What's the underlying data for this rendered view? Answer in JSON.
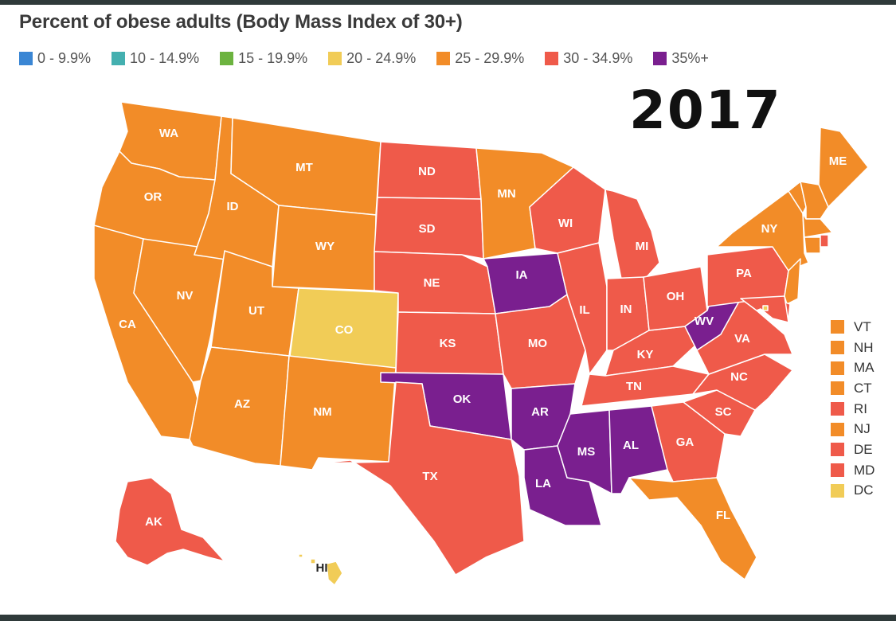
{
  "title": "Percent of obese adults (Body Mass Index of 30+)",
  "year": "2017",
  "legend": [
    {
      "label": "0 - 9.9%",
      "color": "#3a86d4"
    },
    {
      "label": "10 - 14.9%",
      "color": "#44b0b0"
    },
    {
      "label": "15 - 19.9%",
      "color": "#6cb33f"
    },
    {
      "label": "20 - 24.9%",
      "color": "#f1cc57"
    },
    {
      "label": "25 - 29.9%",
      "color": "#f28c28"
    },
    {
      "label": "30 - 34.9%",
      "color": "#ef5a4a"
    },
    {
      "label": "35%+",
      "color": "#7a1f8f"
    }
  ],
  "states": [
    {
      "abbr": "WA",
      "range": "25 - 29.9%"
    },
    {
      "abbr": "OR",
      "range": "25 - 29.9%"
    },
    {
      "abbr": "CA",
      "range": "25 - 29.9%"
    },
    {
      "abbr": "NV",
      "range": "25 - 29.9%"
    },
    {
      "abbr": "ID",
      "range": "25 - 29.9%"
    },
    {
      "abbr": "MT",
      "range": "25 - 29.9%"
    },
    {
      "abbr": "WY",
      "range": "25 - 29.9%"
    },
    {
      "abbr": "UT",
      "range": "25 - 29.9%"
    },
    {
      "abbr": "AZ",
      "range": "25 - 29.9%"
    },
    {
      "abbr": "CO",
      "range": "20 - 24.9%"
    },
    {
      "abbr": "NM",
      "range": "25 - 29.9%"
    },
    {
      "abbr": "ND",
      "range": "30 - 34.9%"
    },
    {
      "abbr": "SD",
      "range": "30 - 34.9%"
    },
    {
      "abbr": "NE",
      "range": "30 - 34.9%"
    },
    {
      "abbr": "KS",
      "range": "30 - 34.9%"
    },
    {
      "abbr": "OK",
      "range": "35%+"
    },
    {
      "abbr": "TX",
      "range": "30 - 34.9%"
    },
    {
      "abbr": "MN",
      "range": "25 - 29.9%"
    },
    {
      "abbr": "IA",
      "range": "35%+"
    },
    {
      "abbr": "MO",
      "range": "30 - 34.9%"
    },
    {
      "abbr": "AR",
      "range": "35%+"
    },
    {
      "abbr": "LA",
      "range": "35%+"
    },
    {
      "abbr": "WI",
      "range": "30 - 34.9%"
    },
    {
      "abbr": "IL",
      "range": "30 - 34.9%"
    },
    {
      "abbr": "MS",
      "range": "35%+"
    },
    {
      "abbr": "MI",
      "range": "30 - 34.9%"
    },
    {
      "abbr": "IN",
      "range": "30 - 34.9%"
    },
    {
      "abbr": "KY",
      "range": "30 - 34.9%"
    },
    {
      "abbr": "TN",
      "range": "30 - 34.9%"
    },
    {
      "abbr": "AL",
      "range": "35%+"
    },
    {
      "abbr": "OH",
      "range": "30 - 34.9%"
    },
    {
      "abbr": "WV",
      "range": "35%+"
    },
    {
      "abbr": "GA",
      "range": "30 - 34.9%"
    },
    {
      "abbr": "FL",
      "range": "25 - 29.9%"
    },
    {
      "abbr": "SC",
      "range": "30 - 34.9%"
    },
    {
      "abbr": "NC",
      "range": "30 - 34.9%"
    },
    {
      "abbr": "VA",
      "range": "30 - 34.9%"
    },
    {
      "abbr": "PA",
      "range": "30 - 34.9%"
    },
    {
      "abbr": "NY",
      "range": "25 - 29.9%"
    },
    {
      "abbr": "ME",
      "range": "25 - 29.9%"
    },
    {
      "abbr": "AK",
      "range": "30 - 34.9%"
    },
    {
      "abbr": "HI",
      "range": "20 - 24.9%"
    },
    {
      "abbr": "VT",
      "range": "25 - 29.9%"
    },
    {
      "abbr": "NH",
      "range": "25 - 29.9%"
    },
    {
      "abbr": "MA",
      "range": "25 - 29.9%"
    },
    {
      "abbr": "CT",
      "range": "25 - 29.9%"
    },
    {
      "abbr": "RI",
      "range": "30 - 34.9%"
    },
    {
      "abbr": "NJ",
      "range": "25 - 29.9%"
    },
    {
      "abbr": "DE",
      "range": "30 - 34.9%"
    },
    {
      "abbr": "MD",
      "range": "30 - 34.9%"
    },
    {
      "abbr": "DC",
      "range": "20 - 24.9%"
    }
  ],
  "small_states_legend": [
    "VT",
    "NH",
    "MA",
    "CT",
    "RI",
    "NJ",
    "DE",
    "MD",
    "DC"
  ]
}
